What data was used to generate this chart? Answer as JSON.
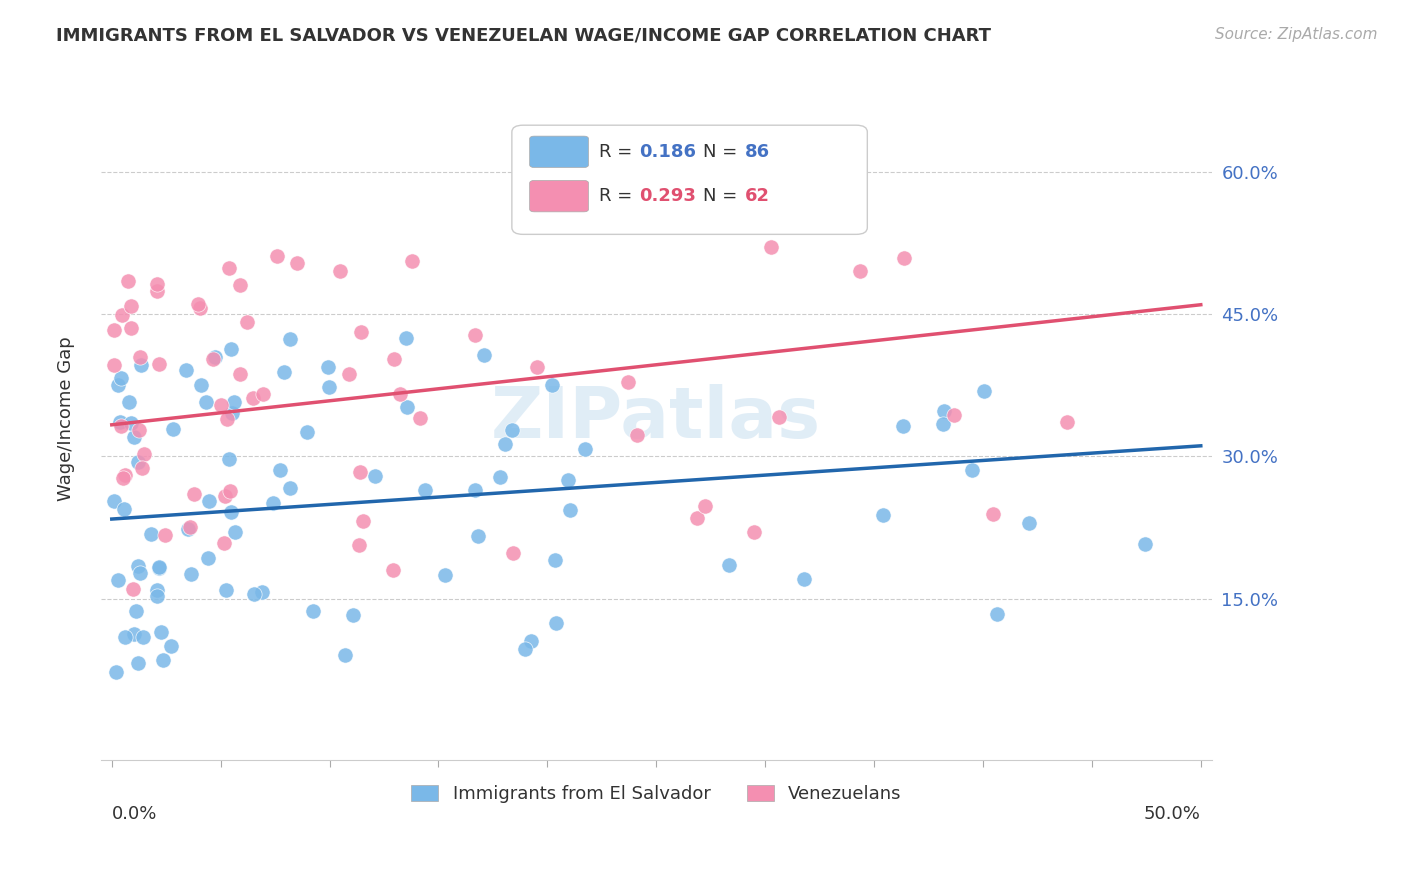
{
  "title": "IMMIGRANTS FROM EL SALVADOR VS VENEZUELAN WAGE/INCOME GAP CORRELATION CHART",
  "source": "Source: ZipAtlas.com",
  "ylabel": "Wage/Income Gap",
  "ytick_values": [
    0.15,
    0.3,
    0.45,
    0.6
  ],
  "xlim": [
    0.0,
    0.5
  ],
  "ylim": [
    -0.02,
    0.7
  ],
  "legend_entries": [
    {
      "r_val": "0.186",
      "n_val": "86",
      "color": "#7ab8e8"
    },
    {
      "r_val": "0.293",
      "n_val": "62",
      "color": "#f48fb1"
    }
  ],
  "watermark": "ZIPatlas",
  "el_salvador_color": "#7ab8e8",
  "venezuelan_color": "#f48fb1",
  "el_salvador_line_color": "#2166ac",
  "venezuelan_line_color": "#e05070",
  "el_salvador_R": 0.186,
  "venezuelan_R": 0.293,
  "el_salvador_N": 86,
  "venezuelan_N": 62
}
